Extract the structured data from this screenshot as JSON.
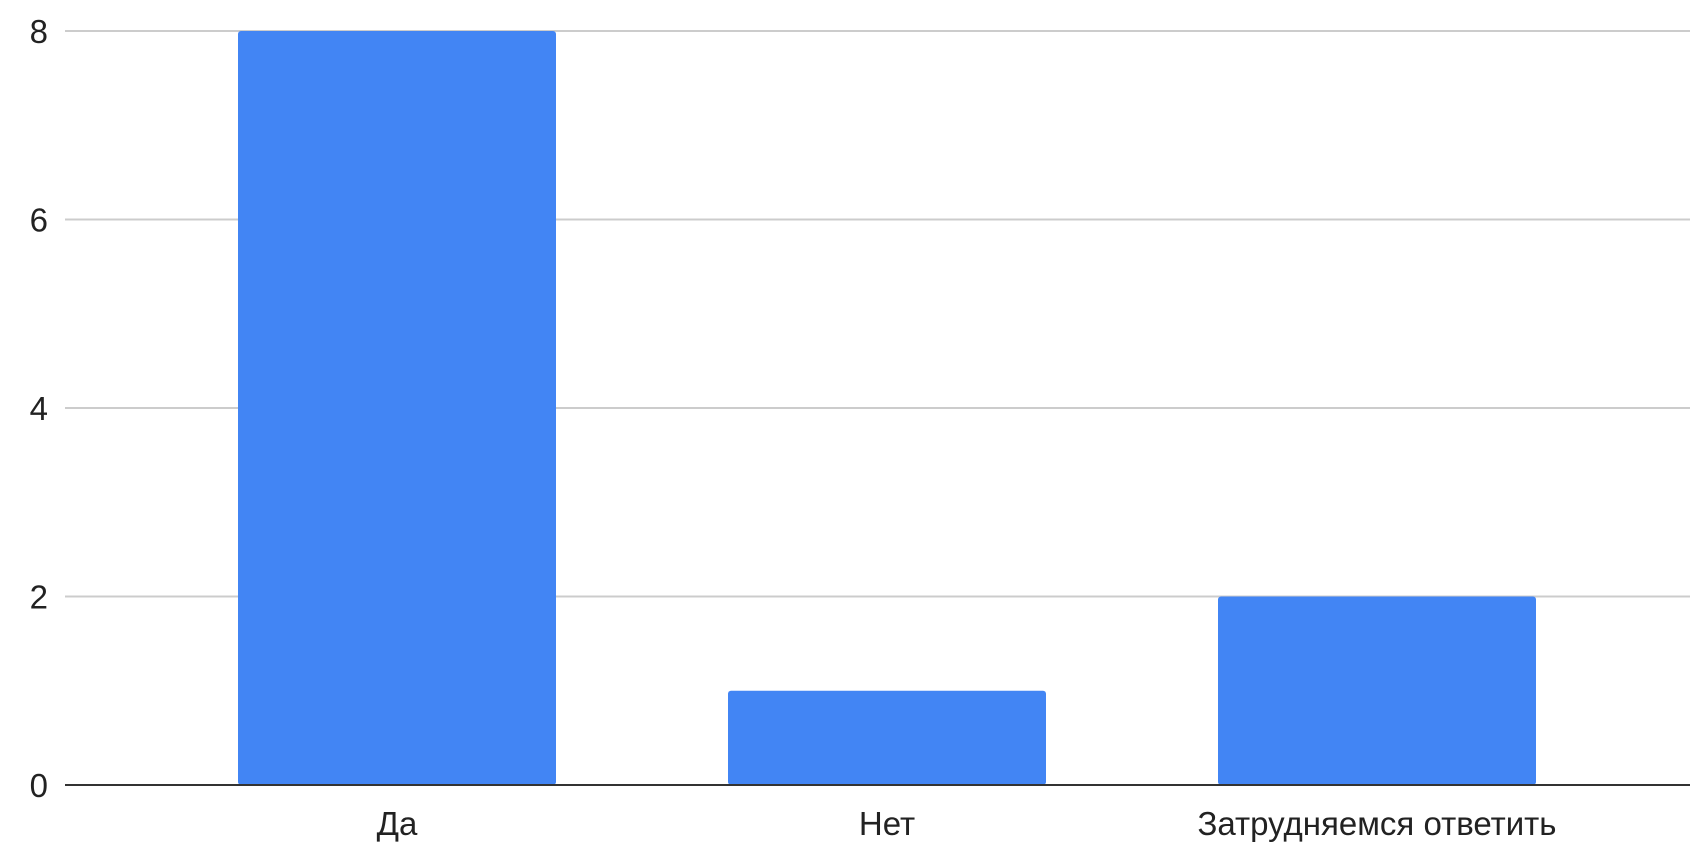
{
  "chart_data": {
    "type": "bar",
    "categories": [
      "Да",
      "Нет",
      "Затрудняемся ответить"
    ],
    "values": [
      8,
      1,
      2
    ],
    "title": "",
    "xlabel": "",
    "ylabel": "",
    "ylim": [
      0,
      8
    ],
    "yticks": [
      0,
      2,
      4,
      6,
      8
    ],
    "grid": true,
    "legend": "none",
    "colors": {
      "bar": "#4285f4",
      "grid": "#cccccc",
      "axis": "#333333",
      "text": "#222222"
    }
  }
}
